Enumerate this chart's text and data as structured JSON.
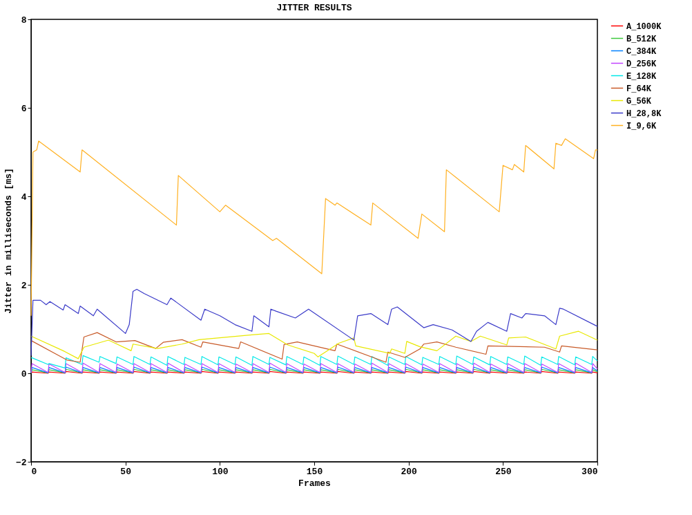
{
  "chart_data": {
    "type": "line",
    "title": "JITTER RESULTS",
    "xlabel": "Frames",
    "ylabel": "Jitter in milliseconds [ms]",
    "xlim": [
      0,
      300
    ],
    "xticks": [
      0,
      50,
      100,
      150,
      200,
      250,
      300
    ],
    "ylim": [
      -2,
      8
    ],
    "yticks": [
      -2,
      0,
      2,
      4,
      6,
      8
    ],
    "grid": false,
    "legend": "right",
    "line_style": "solid",
    "marker": "none",
    "x": [
      0,
      0.5,
      9,
      9.5,
      18,
      18.5,
      27,
      27.5,
      36,
      36.5,
      45,
      45.5,
      54,
      54.5,
      63,
      63.5,
      72,
      72.5,
      81,
      81.5,
      90,
      90.5,
      99,
      99.5,
      108,
      108.5,
      117,
      117.5,
      126,
      126.5,
      135,
      135.5,
      144,
      144.5,
      153,
      153.5,
      162,
      162.5,
      171,
      171.5,
      180,
      180.5,
      189,
      189.5,
      198,
      198.5,
      207,
      207.5,
      216,
      216.5,
      225,
      225.5,
      234,
      234.5,
      243,
      243.5,
      252,
      252.5,
      261,
      261.5,
      270,
      270.5,
      279,
      279.5,
      288,
      288.5,
      297,
      297.5,
      300
    ],
    "series": [
      {
        "name": "A_1000K",
        "color": "#ff0000",
        "values": [
          0,
          0.03,
          0,
          0.03,
          0,
          0.04,
          0,
          0.03,
          0,
          0.03,
          0,
          0.03,
          0,
          0.04,
          0,
          0.03,
          0,
          0.03,
          0,
          0.03,
          0,
          0.04,
          0,
          0.03,
          0,
          0.03,
          0,
          0.03,
          0,
          0.04,
          0,
          0.03,
          0,
          0.03,
          0,
          0.03,
          0,
          0.04,
          0,
          0.03,
          0,
          0.03,
          0,
          0.03,
          0,
          0.04,
          0,
          0.03,
          0,
          0.03,
          0,
          0.03,
          0,
          0.04,
          0,
          0.03,
          0,
          0.03,
          0,
          0.03,
          0,
          0.04,
          0,
          0.03,
          0,
          0.03,
          0,
          0.03,
          0.01
        ]
      },
      {
        "name": "B_512K",
        "color": "#3cc83c",
        "values": [
          0.01,
          0.08,
          0.01,
          0.08,
          0.01,
          0.09,
          0.01,
          0.08,
          0.01,
          0.08,
          0.01,
          0.08,
          0.01,
          0.09,
          0.01,
          0.08,
          0.01,
          0.08,
          0.01,
          0.08,
          0.01,
          0.09,
          0.01,
          0.08,
          0.01,
          0.08,
          0.01,
          0.08,
          0.01,
          0.09,
          0.01,
          0.08,
          0.01,
          0.08,
          0.01,
          0.08,
          0.01,
          0.09,
          0.01,
          0.08,
          0.01,
          0.08,
          0.01,
          0.08,
          0.01,
          0.09,
          0.01,
          0.08,
          0.01,
          0.08,
          0.01,
          0.08,
          0.01,
          0.09,
          0.01,
          0.08,
          0.01,
          0.08,
          0.01,
          0.08,
          0.01,
          0.09,
          0.01,
          0.08,
          0.01,
          0.08,
          0.01,
          0.08,
          0.03
        ]
      },
      {
        "name": "C_384K",
        "color": "#0080ff",
        "values": [
          0.01,
          0.13,
          0.01,
          0.13,
          0.01,
          0.14,
          0.01,
          0.13,
          0.01,
          0.13,
          0.01,
          0.13,
          0.01,
          0.14,
          0.01,
          0.13,
          0.01,
          0.13,
          0.01,
          0.13,
          0.01,
          0.14,
          0.01,
          0.13,
          0.01,
          0.13,
          0.01,
          0.13,
          0.01,
          0.14,
          0.01,
          0.13,
          0.01,
          0.13,
          0.01,
          0.13,
          0.01,
          0.14,
          0.01,
          0.13,
          0.01,
          0.13,
          0.01,
          0.13,
          0.01,
          0.14,
          0.01,
          0.13,
          0.01,
          0.13,
          0.01,
          0.13,
          0.01,
          0.14,
          0.01,
          0.13,
          0.01,
          0.13,
          0.01,
          0.13,
          0.01,
          0.14,
          0.01,
          0.13,
          0.01,
          0.13,
          0.01,
          0.13,
          0.05
        ]
      },
      {
        "name": "D_256K",
        "color": "#c040ff",
        "values": [
          0.02,
          0.22,
          0.02,
          0.21,
          0.02,
          0.22,
          0.02,
          0.23,
          0.02,
          0.22,
          0.02,
          0.21,
          0.02,
          0.22,
          0.02,
          0.22,
          0.02,
          0.23,
          0.02,
          0.21,
          0.02,
          0.22,
          0.02,
          0.22,
          0.02,
          0.21,
          0.02,
          0.22,
          0.02,
          0.23,
          0.02,
          0.22,
          0.02,
          0.21,
          0.02,
          0.22,
          0.02,
          0.22,
          0.02,
          0.21,
          0.02,
          0.23,
          0.02,
          0.22,
          0.02,
          0.22,
          0.02,
          0.21,
          0.02,
          0.22,
          0.02,
          0.22,
          0.02,
          0.23,
          0.02,
          0.21,
          0.02,
          0.22,
          0.02,
          0.22,
          0.02,
          0.21,
          0.02,
          0.22,
          0.02,
          0.23,
          0.02,
          0.22,
          0.1
        ]
      },
      {
        "name": "E_128K",
        "color": "#00e8e8",
        "values": [
          0.35,
          0.35,
          0.2,
          0.22,
          0.12,
          0.35,
          0.2,
          0.4,
          0.25,
          0.38,
          0.22,
          0.37,
          0.2,
          0.38,
          0.2,
          0.37,
          0.18,
          0.38,
          0.2,
          0.36,
          0.2,
          0.38,
          0.19,
          0.37,
          0.2,
          0.37,
          0.18,
          0.38,
          0.2,
          0.36,
          0.19,
          0.38,
          0.2,
          0.37,
          0.18,
          0.38,
          0.2,
          0.39,
          0.2,
          0.37,
          0.2,
          0.38,
          0.18,
          0.37,
          0.2,
          0.38,
          0.19,
          0.36,
          0.2,
          0.38,
          0.2,
          0.39,
          0.2,
          0.37,
          0.19,
          0.38,
          0.2,
          0.37,
          0.2,
          0.39,
          0.18,
          0.37,
          0.2,
          0.38,
          0.19,
          0.37,
          0.2,
          0.38,
          0.28
        ]
      },
      {
        "name": "F_64K",
        "color": "#c85a28",
        "x": [
          0,
          19,
          26,
          28,
          35,
          45,
          55,
          66,
          70,
          80,
          90,
          91,
          110,
          111,
          133,
          134,
          141,
          150,
          161,
          162,
          188,
          189,
          198,
          206,
          208,
          215,
          225,
          241,
          242,
          272,
          280,
          281,
          300
        ],
        "values": [
          0.74,
          0.3,
          0.25,
          0.82,
          0.92,
          0.71,
          0.74,
          0.56,
          0.7,
          0.76,
          0.59,
          0.71,
          0.56,
          0.71,
          0.32,
          0.65,
          0.71,
          0.62,
          0.51,
          0.66,
          0.25,
          0.48,
          0.36,
          0.55,
          0.66,
          0.71,
          0.59,
          0.43,
          0.62,
          0.59,
          0.48,
          0.62,
          0.53
        ]
      },
      {
        "name": "G_56K",
        "color": "#e8e800",
        "x": [
          0,
          17,
          25,
          28,
          41,
          53,
          54,
          67,
          80,
          89,
          117,
          126,
          136,
          150,
          152,
          163,
          171,
          172,
          190,
          191,
          198,
          199,
          206,
          215,
          225,
          233,
          238,
          252,
          253,
          262,
          278,
          280,
          290,
          300
        ],
        "values": [
          0.84,
          0.51,
          0.33,
          0.59,
          0.75,
          0.51,
          0.66,
          0.56,
          0.66,
          0.76,
          0.87,
          0.9,
          0.64,
          0.45,
          0.37,
          0.68,
          0.8,
          0.62,
          0.45,
          0.55,
          0.45,
          0.72,
          0.6,
          0.51,
          0.84,
          0.72,
          0.84,
          0.64,
          0.8,
          0.82,
          0.55,
          0.84,
          0.95,
          0.75
        ]
      },
      {
        "name": "H_28,8K",
        "color": "#3a3ac8",
        "x": [
          0,
          1,
          5,
          8,
          10,
          17,
          18,
          25,
          26,
          33,
          35,
          50,
          52,
          54,
          56,
          60,
          72,
          74,
          90,
          92,
          100,
          108,
          117,
          118,
          126,
          127,
          130,
          140,
          147,
          171,
          173,
          180,
          189,
          191,
          194,
          208,
          213,
          223,
          233,
          236,
          242,
          252,
          254,
          260,
          262,
          272,
          278,
          280,
          282,
          300
        ],
        "values": [
          0.4,
          1.65,
          1.65,
          1.55,
          1.62,
          1.43,
          1.55,
          1.35,
          1.52,
          1.3,
          1.45,
          0.9,
          1.1,
          1.85,
          1.9,
          1.8,
          1.55,
          1.7,
          1.2,
          1.45,
          1.3,
          1.1,
          0.95,
          1.3,
          1.05,
          1.45,
          1.4,
          1.25,
          1.45,
          0.75,
          1.3,
          1.35,
          1.1,
          1.45,
          1.5,
          1.03,
          1.1,
          0.98,
          0.72,
          0.95,
          1.15,
          0.95,
          1.35,
          1.25,
          1.35,
          1.3,
          1.1,
          1.47,
          1.45,
          1.06
        ]
      },
      {
        "name": "I_9,6K",
        "color": "#ffb020",
        "x": [
          0,
          1,
          3,
          4,
          26,
          27,
          77,
          78,
          100,
          103,
          128,
          130,
          154,
          156,
          161,
          162,
          180,
          181,
          205,
          207,
          219,
          220,
          248,
          250,
          255,
          256,
          261,
          262,
          277,
          278,
          281,
          283,
          298,
          299,
          300
        ],
        "values": [
          1.3,
          5.0,
          5.05,
          5.25,
          4.55,
          5.05,
          3.35,
          4.47,
          3.65,
          3.8,
          3.0,
          3.05,
          2.25,
          3.95,
          3.8,
          3.85,
          3.35,
          3.85,
          3.05,
          3.6,
          3.2,
          4.6,
          3.65,
          4.7,
          4.6,
          4.72,
          4.55,
          5.15,
          4.62,
          5.2,
          5.15,
          5.3,
          4.85,
          5.05,
          5.05
        ]
      }
    ]
  }
}
